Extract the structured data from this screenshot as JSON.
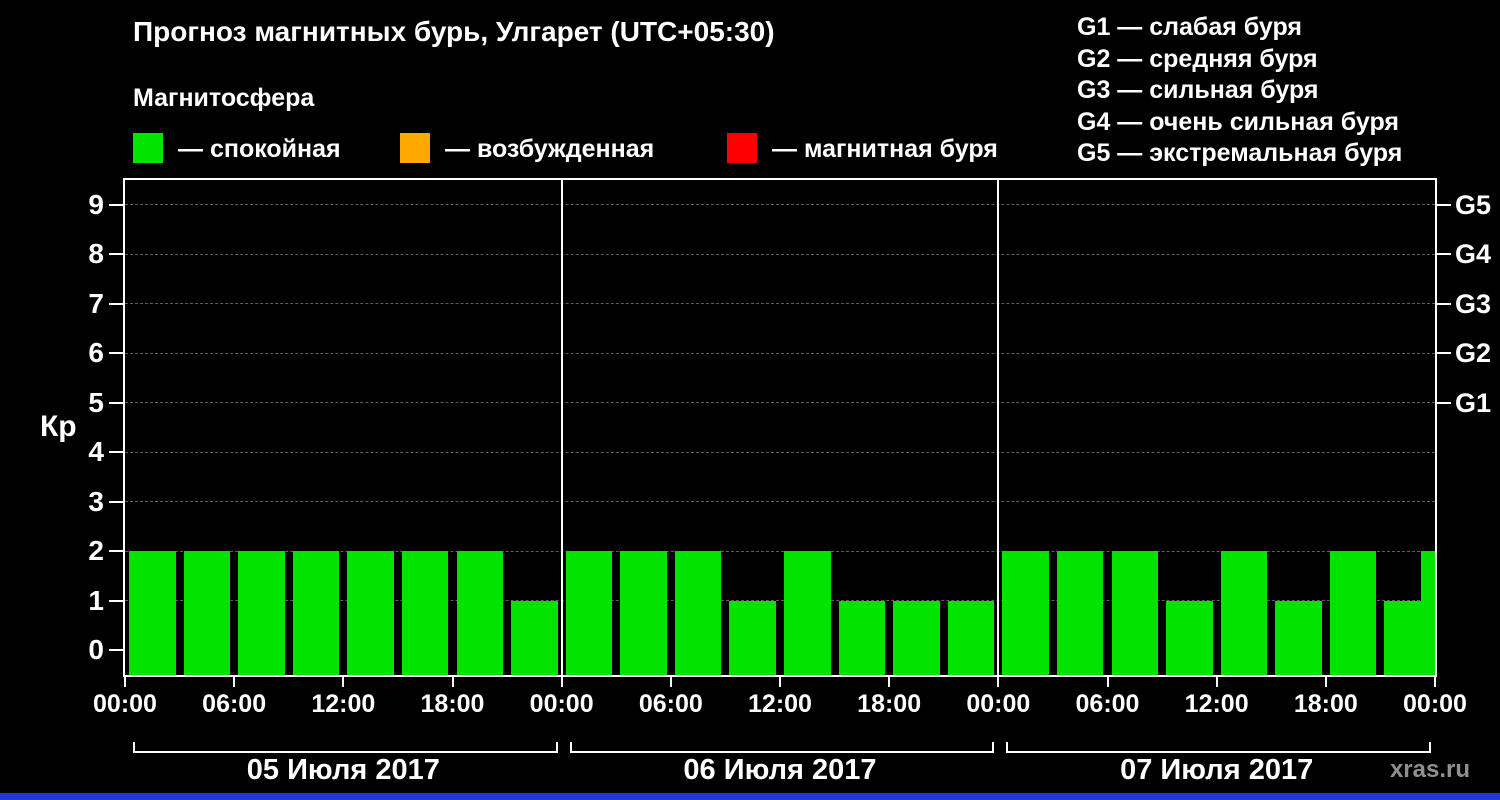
{
  "legend": {
    "heading": "Магнитосфера",
    "items": [
      {
        "name": "quiet",
        "label": "— спокойная",
        "color": "#00e400"
      },
      {
        "name": "unsettled",
        "label": "— возбужденная",
        "color": "#ffa800"
      },
      {
        "name": "storm",
        "label": "— магнитная буря",
        "color": "#ff0000"
      }
    ]
  },
  "g_legend": [
    "G1 — слабая буря",
    "G2 — средняя буря",
    "G3 — сильная буря",
    "G4 — очень сильная буря",
    "G5 — экстремальная буря"
  ],
  "watermark": "xras.ru",
  "colors": {
    "background": "#000000",
    "text": "#ffffff",
    "axis": "#ffffff",
    "grid": "#5f5f5f",
    "bar": "#00e400",
    "watermark": "#909090",
    "footer_strip": "#2236d1"
  },
  "chart_data": {
    "type": "bar",
    "title": "Прогноз магнитных бурь, Улгарет (UTC+05:30)",
    "ylabel": "Кр",
    "ylim": [
      -0.5,
      9.5
    ],
    "y_ticks": [
      0,
      1,
      2,
      3,
      4,
      5,
      6,
      7,
      8,
      9
    ],
    "x_tick_labels": [
      "00:00",
      "06:00",
      "12:00",
      "18:00",
      "00:00",
      "06:00",
      "12:00",
      "18:00",
      "00:00",
      "06:00",
      "12:00",
      "18:00",
      "00:00"
    ],
    "right_axis_labels": [
      {
        "label": "G1",
        "kp": 5
      },
      {
        "label": "G2",
        "kp": 6
      },
      {
        "label": "G3",
        "kp": 7
      },
      {
        "label": "G4",
        "kp": 8
      },
      {
        "label": "G5",
        "kp": 9
      }
    ],
    "interval_hours": 3,
    "grid": true,
    "days": [
      {
        "date": "05 Июля 2017",
        "values": [
          2,
          2,
          2,
          2,
          2,
          2,
          2,
          1
        ]
      },
      {
        "date": "06 Июля 2017",
        "values": [
          2,
          2,
          2,
          1,
          2,
          1,
          1,
          1
        ]
      },
      {
        "date": "07 Июля 2017",
        "values": [
          2,
          2,
          2,
          1,
          2,
          1,
          2,
          1
        ]
      }
    ],
    "next_interval_partial_value": 2
  }
}
